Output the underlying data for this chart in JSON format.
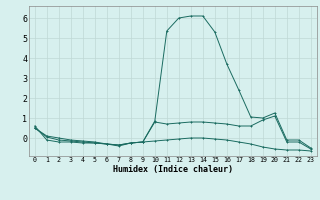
{
  "xlabel": "Humidex (Indice chaleur)",
  "x": [
    0,
    1,
    2,
    3,
    4,
    5,
    6,
    7,
    8,
    9,
    10,
    11,
    12,
    13,
    14,
    15,
    16,
    17,
    18,
    19,
    20,
    21,
    22,
    23
  ],
  "line1": [
    0.6,
    -0.1,
    -0.2,
    -0.2,
    -0.25,
    -0.25,
    -0.3,
    -0.35,
    -0.25,
    -0.2,
    -0.15,
    -0.1,
    -0.05,
    -0.0,
    -0.0,
    -0.05,
    -0.1,
    -0.2,
    -0.3,
    -0.45,
    -0.55,
    -0.6,
    -0.6,
    -0.65
  ],
  "line2": [
    0.5,
    0.1,
    0.0,
    -0.1,
    -0.15,
    -0.2,
    -0.3,
    -0.4,
    -0.25,
    -0.2,
    0.85,
    5.35,
    6.0,
    6.1,
    6.1,
    5.3,
    3.7,
    2.4,
    1.05,
    1.0,
    1.25,
    -0.1,
    -0.1,
    -0.5
  ],
  "line3": [
    0.5,
    0.05,
    -0.1,
    -0.15,
    -0.2,
    -0.25,
    -0.3,
    -0.35,
    -0.25,
    -0.2,
    0.8,
    0.7,
    0.75,
    0.8,
    0.8,
    0.75,
    0.7,
    0.6,
    0.6,
    0.9,
    1.1,
    -0.2,
    -0.2,
    -0.55
  ],
  "bg_color": "#d7f0ee",
  "line_color": "#1a6b60",
  "grid_color": "#c0d8d5",
  "ylim": [
    -0.9,
    6.6
  ],
  "yticks": [
    0,
    1,
    2,
    3,
    4,
    5,
    6
  ],
  "xlim": [
    -0.5,
    23.5
  ],
  "xlabel_fontsize": 6.0,
  "tick_fontsize_x": 4.8,
  "tick_fontsize_y": 6.0
}
